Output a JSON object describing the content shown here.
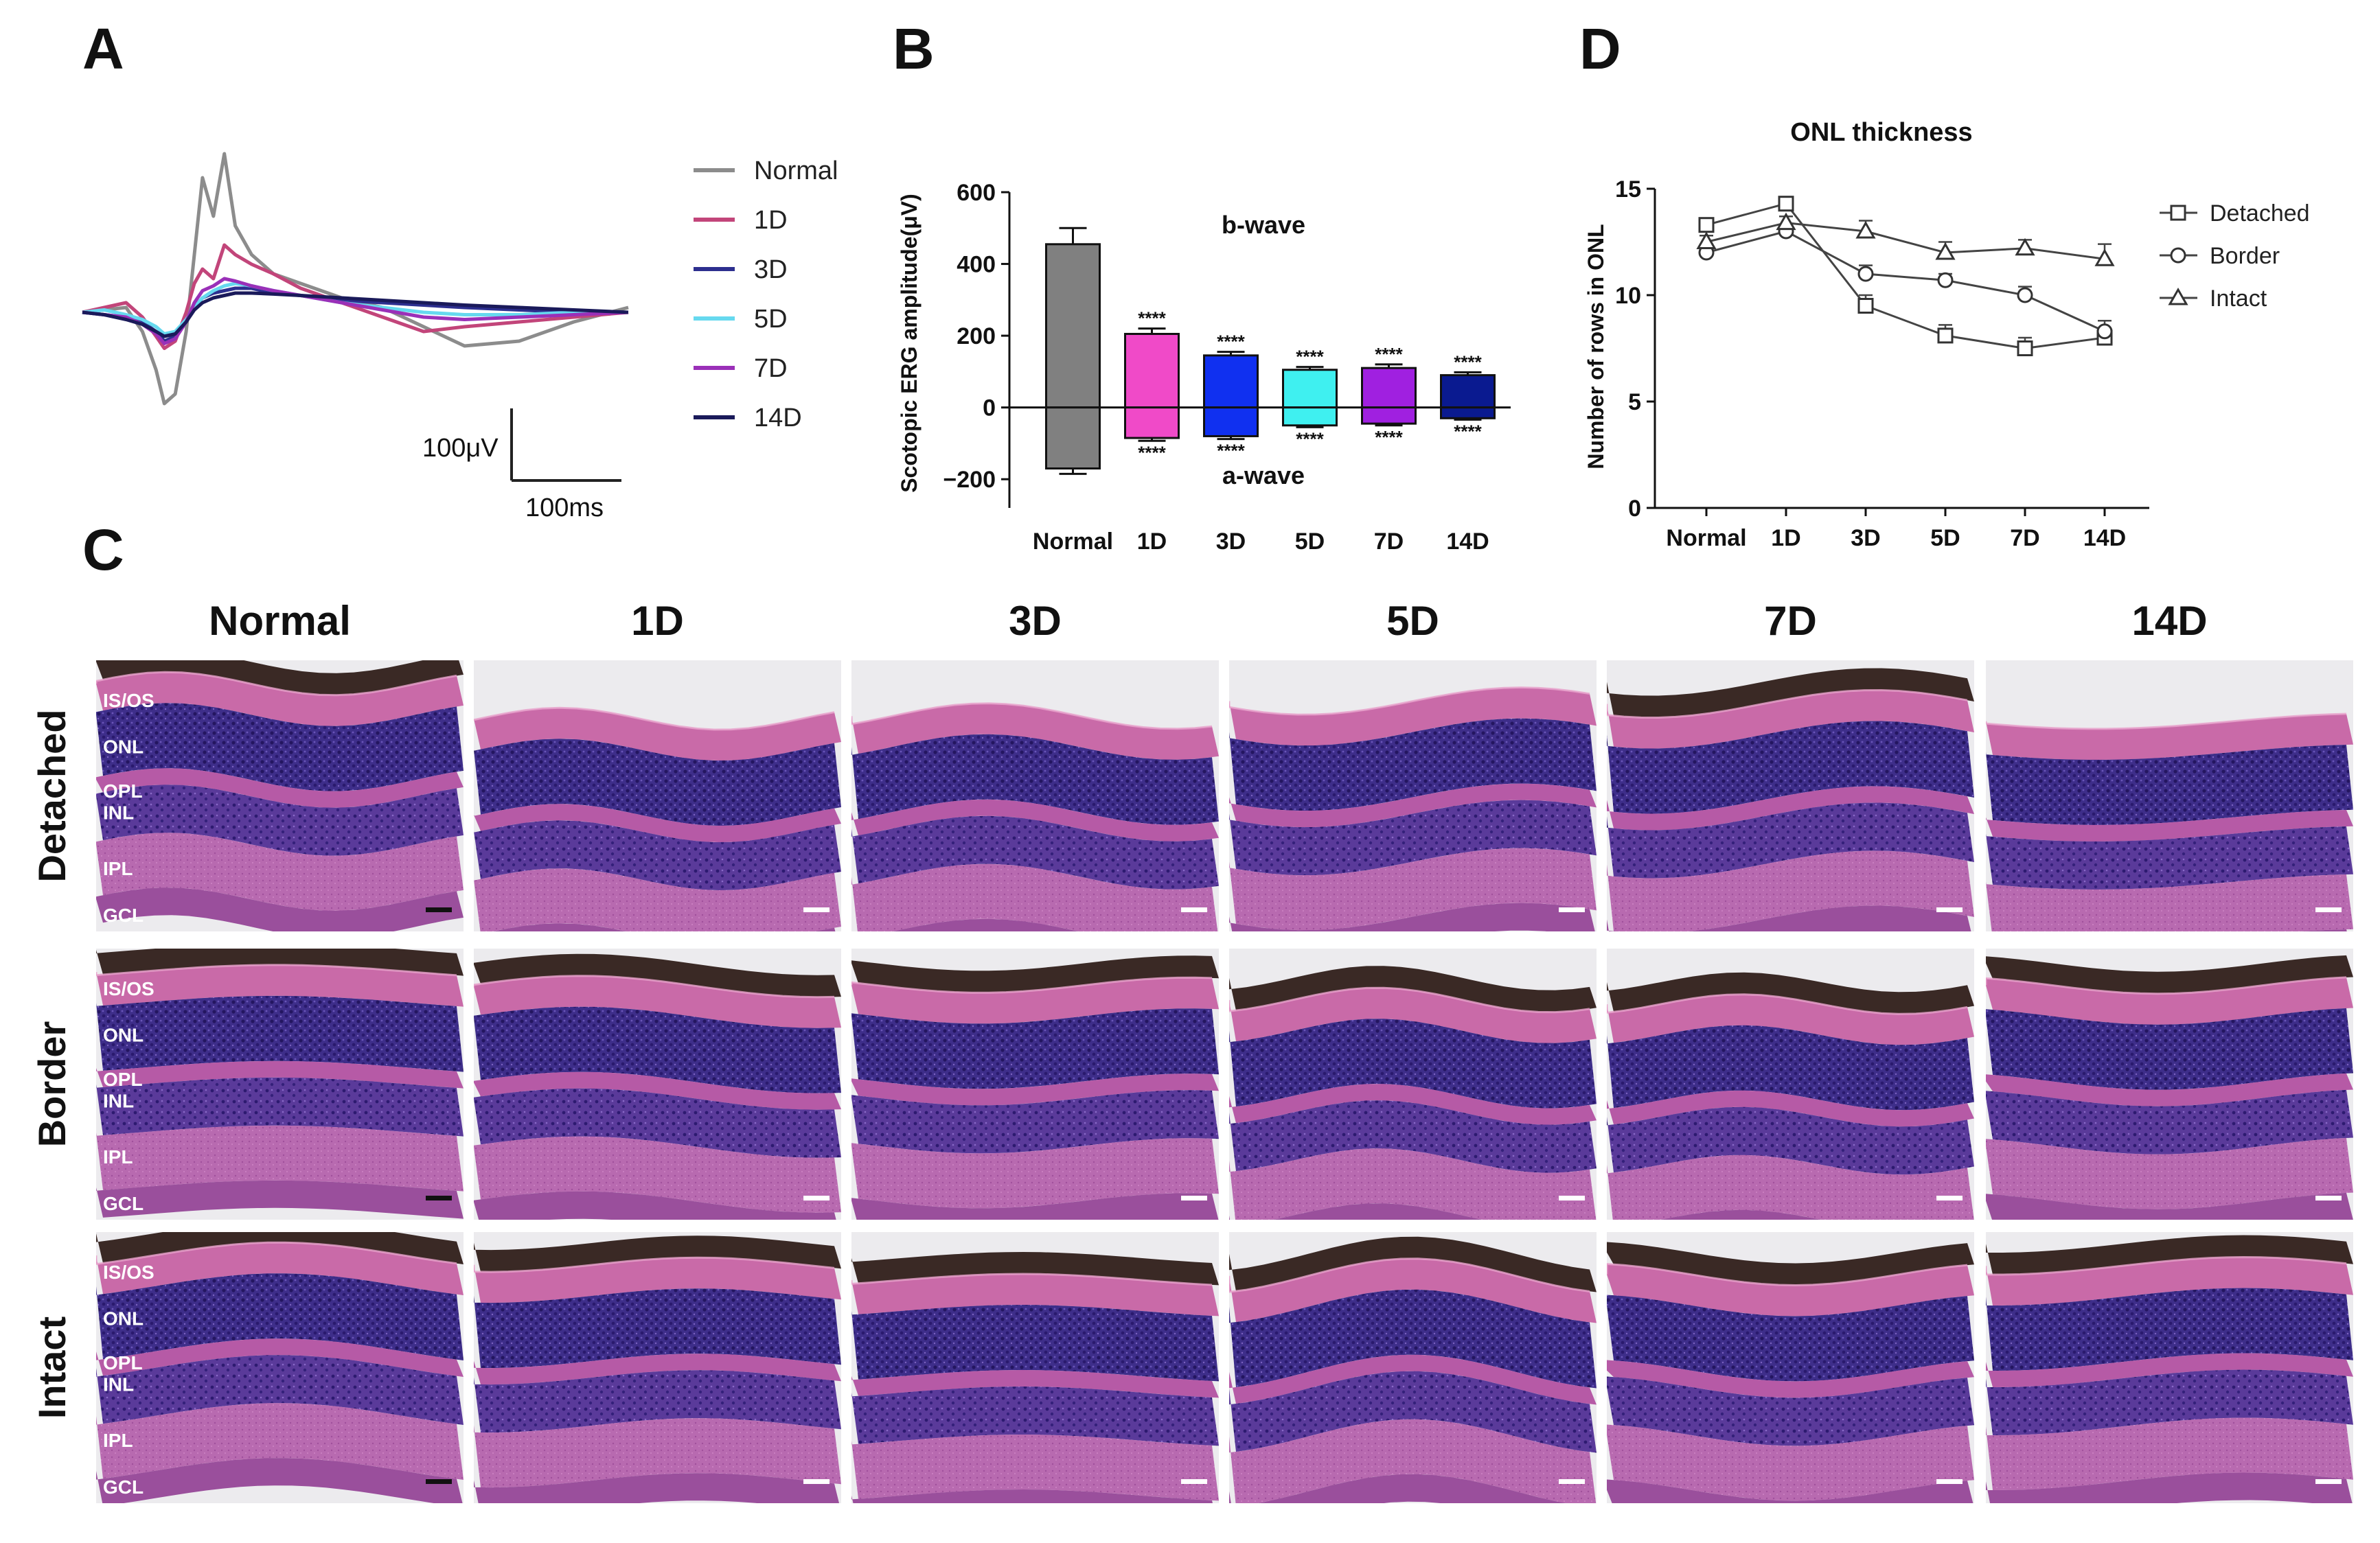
{
  "panels": {
    "a": "A",
    "b": "B",
    "c": "C",
    "d": "D"
  },
  "colors": {
    "Normal": "#8c8c8c",
    "1D": "#c2457a",
    "3D": "#2d2f8f",
    "5D": "#66d9ef",
    "7D": "#9a30b8",
    "14D": "#1a1a5a",
    "tissue_pink": "#c45a9e",
    "tissue_purple": "#4a2a8a",
    "tissue_dark": "#2b1a1a"
  },
  "scale_bar": {
    "voltage": "100μV",
    "time": "100ms"
  },
  "erg_legend": [
    "Normal",
    "1D",
    "3D",
    "5D",
    "7D",
    "14D"
  ],
  "chart_data": [
    {
      "type": "line",
      "panel": "A",
      "title": "",
      "series": [
        {
          "name": "Normal",
          "x": [
            0,
            8,
            16,
            22,
            27,
            30,
            34,
            38,
            41,
            44,
            48,
            52,
            56,
            62,
            70,
            80,
            95,
            110,
            125,
            140,
            160,
            180,
            200
          ],
          "y": [
            0,
            5,
            10,
            -40,
            -120,
            -190,
            -170,
            -40,
            120,
            280,
            200,
            330,
            180,
            120,
            80,
            60,
            30,
            10,
            -30,
            -70,
            -60,
            -20,
            10
          ]
        },
        {
          "name": "1D",
          "x": [
            0,
            8,
            16,
            22,
            27,
            30,
            34,
            38,
            41,
            44,
            48,
            52,
            56,
            62,
            70,
            80,
            95,
            110,
            125,
            140,
            160,
            180,
            200
          ],
          "y": [
            0,
            10,
            20,
            -10,
            -50,
            -75,
            -60,
            0,
            60,
            90,
            70,
            140,
            120,
            100,
            80,
            50,
            20,
            -10,
            -40,
            -30,
            -20,
            -10,
            0
          ]
        },
        {
          "name": "3D",
          "x": [
            0,
            8,
            16,
            22,
            27,
            30,
            34,
            38,
            41,
            44,
            48,
            52,
            56,
            62,
            70,
            80,
            95,
            110,
            125,
            140,
            160,
            180,
            200
          ],
          "y": [
            0,
            -5,
            -10,
            -20,
            -40,
            -60,
            -50,
            -20,
            10,
            30,
            40,
            45,
            50,
            50,
            40,
            35,
            25,
            20,
            15,
            10,
            5,
            0,
            0
          ]
        },
        {
          "name": "5D",
          "x": [
            0,
            8,
            16,
            22,
            27,
            30,
            34,
            38,
            41,
            44,
            48,
            52,
            56,
            62,
            70,
            80,
            95,
            110,
            125,
            140,
            160,
            180,
            200
          ],
          "y": [
            0,
            5,
            -5,
            -15,
            -30,
            -45,
            -40,
            -15,
            10,
            30,
            45,
            55,
            60,
            55,
            45,
            35,
            20,
            10,
            0,
            -5,
            -5,
            0,
            0
          ]
        },
        {
          "name": "7D",
          "x": [
            0,
            8,
            16,
            22,
            27,
            30,
            34,
            38,
            41,
            44,
            48,
            52,
            56,
            62,
            70,
            80,
            95,
            110,
            125,
            140,
            160,
            180,
            200
          ],
          "y": [
            0,
            -5,
            -10,
            -25,
            -45,
            -65,
            -55,
            -20,
            20,
            45,
            55,
            70,
            65,
            55,
            45,
            35,
            20,
            5,
            -10,
            -15,
            -10,
            -5,
            0
          ]
        },
        {
          "name": "14D",
          "x": [
            0,
            8,
            16,
            22,
            27,
            30,
            34,
            38,
            41,
            44,
            48,
            52,
            56,
            62,
            70,
            80,
            95,
            110,
            125,
            140,
            160,
            180,
            200
          ],
          "y": [
            0,
            -5,
            -15,
            -25,
            -40,
            -50,
            -45,
            -20,
            5,
            20,
            30,
            35,
            40,
            40,
            38,
            35,
            30,
            25,
            20,
            15,
            10,
            5,
            0
          ]
        }
      ]
    },
    {
      "type": "bar",
      "panel": "B",
      "categories": [
        "Normal",
        "1D",
        "3D",
        "5D",
        "7D",
        "14D"
      ],
      "series": [
        {
          "name": "b-wave",
          "values": [
            455,
            205,
            145,
            105,
            110,
            90
          ],
          "errors": [
            45,
            15,
            10,
            8,
            10,
            8
          ]
        },
        {
          "name": "a-wave",
          "values": [
            -170,
            -85,
            -80,
            -50,
            -45,
            -30
          ],
          "errors": [
            15,
            8,
            8,
            5,
            5,
            4
          ]
        }
      ],
      "significance": [
        "",
        "****",
        "****",
        "****",
        "****",
        "****"
      ],
      "bar_colors": [
        "#808080",
        "#f04ac8",
        "#1030f0",
        "#3ff0f0",
        "#a020e0",
        "#0a1a90"
      ],
      "ylabel": "Scotopic ERG amplitude(μV)",
      "ylim": [
        -280,
        600
      ],
      "yticks": [
        "600",
        "400",
        "200",
        "0",
        "−200"
      ],
      "annotations": {
        "top": "b-wave",
        "bottom": "a-wave"
      }
    },
    {
      "type": "line",
      "panel": "D",
      "title": "ONL thickness",
      "categories": [
        "Normal",
        "1D",
        "3D",
        "5D",
        "7D",
        "14D"
      ],
      "ylabel": "Number of rows in ONL",
      "ylim": [
        0,
        15
      ],
      "yticks": [
        "15",
        "10",
        "5",
        "0"
      ],
      "series": [
        {
          "name": "Detached",
          "marker": "square",
          "values": [
            13.3,
            14.3,
            9.5,
            8.1,
            7.5,
            8.0
          ],
          "errors": [
            0.3,
            0.3,
            0.5,
            0.5,
            0.5,
            0.4
          ]
        },
        {
          "name": "Border",
          "marker": "circle",
          "values": [
            12.0,
            13.0,
            11.0,
            10.7,
            10.0,
            8.3
          ],
          "errors": [
            0.3,
            0.3,
            0.4,
            0.3,
            0.4,
            0.5
          ]
        },
        {
          "name": "Intact",
          "marker": "triangle",
          "values": [
            12.5,
            13.4,
            13.0,
            12.0,
            12.2,
            11.7
          ],
          "errors": [
            0.3,
            0.3,
            0.5,
            0.5,
            0.4,
            0.7
          ]
        }
      ]
    }
  ],
  "histology": {
    "columns": [
      "Normal",
      "1D",
      "3D",
      "5D",
      "7D",
      "14D"
    ],
    "rows": [
      "Detached",
      "Border",
      "Intact"
    ],
    "layers": [
      "IS/OS",
      "ONL",
      "OPL",
      "INL",
      "IPL",
      "GCL"
    ]
  }
}
